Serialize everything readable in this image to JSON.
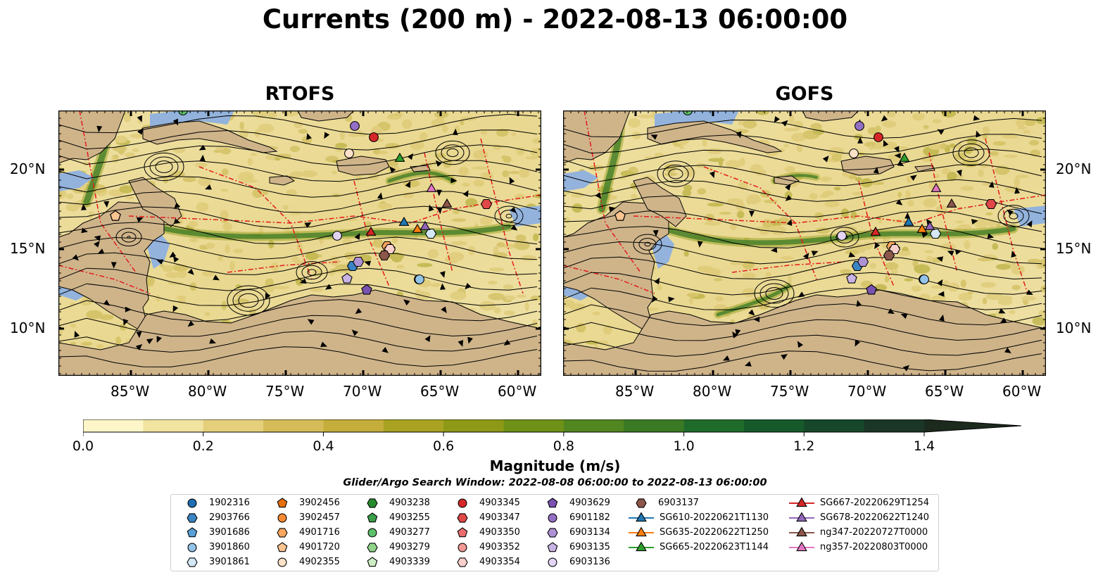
{
  "title": "Currents (200 m) - 2022-08-13 06:00:00",
  "panels": [
    {
      "title": "RTOFS"
    },
    {
      "title": "GOFS"
    }
  ],
  "axes": {
    "lon_ticks": [
      "85°W",
      "80°W",
      "75°W",
      "70°W",
      "65°W",
      "60°W"
    ],
    "lat_ticks": [
      "20°N",
      "15°N",
      "10°N"
    ]
  },
  "colorbar": {
    "label": "Magnitude (m/s)",
    "tick_labels": [
      "0.0",
      "0.2",
      "0.4",
      "0.6",
      "0.8",
      "1.0",
      "1.2",
      "1.4"
    ],
    "range": [
      0,
      1.5
    ],
    "colors": [
      "#fdf6c8",
      "#f1e3a0",
      "#e4cf7b",
      "#d5bc58",
      "#c4ad3a",
      "#a9a223",
      "#8e9a17",
      "#6f9118",
      "#528620",
      "#3a7a24",
      "#1f6b2b",
      "#165a2c",
      "#17472a",
      "#1b3626",
      "#1c2a1e"
    ]
  },
  "search_window": "Glider/Argo Search Window: 2022-08-08 06:00:00 to 2022-08-13 06:00:00",
  "legend": [
    {
      "label": "1902316",
      "marker": "circle",
      "color": "#1f6eb4"
    },
    {
      "label": "2903766",
      "marker": "hexagon",
      "color": "#3a84c4"
    },
    {
      "label": "3901686",
      "marker": "pentagon",
      "color": "#5aa0d8"
    },
    {
      "label": "3901860",
      "marker": "circle",
      "color": "#93c4e8"
    },
    {
      "label": "3901861",
      "marker": "hexagon",
      "color": "#d4e8f6"
    },
    {
      "label": "3902456",
      "marker": "pentagon",
      "color": "#e66f0d"
    },
    {
      "label": "3902457",
      "marker": "circle",
      "color": "#f58a32"
    },
    {
      "label": "4901716",
      "marker": "hexagon",
      "color": "#f9a660"
    },
    {
      "label": "4901720",
      "marker": "pentagon",
      "color": "#fbc490"
    },
    {
      "label": "4902355",
      "marker": "circle",
      "color": "#fde2c8"
    },
    {
      "label": "4903238",
      "marker": "hexagon",
      "color": "#268a2e"
    },
    {
      "label": "4903255",
      "marker": "pentagon",
      "color": "#3aa04a"
    },
    {
      "label": "4903277",
      "marker": "circle",
      "color": "#5ec06a"
    },
    {
      "label": "4903279",
      "marker": "hexagon",
      "color": "#8fd48a"
    },
    {
      "label": "4903339",
      "marker": "pentagon",
      "color": "#cdeec4"
    },
    {
      "label": "4903345",
      "marker": "circle",
      "color": "#d62728"
    },
    {
      "label": "4903347",
      "marker": "hexagon",
      "color": "#e04848"
    },
    {
      "label": "4903350",
      "marker": "pentagon",
      "color": "#ea6c6c"
    },
    {
      "label": "4903352",
      "marker": "circle",
      "color": "#f39a96"
    },
    {
      "label": "4903354",
      "marker": "hexagon",
      "color": "#fad0cc"
    },
    {
      "label": "4903629",
      "marker": "pentagon",
      "color": "#7a52b0"
    },
    {
      "label": "6901182",
      "marker": "circle",
      "color": "#9370c4"
    },
    {
      "label": "6903134",
      "marker": "hexagon",
      "color": "#ad92d4"
    },
    {
      "label": "6903135",
      "marker": "pentagon",
      "color": "#c8b4e4"
    },
    {
      "label": "6903136",
      "marker": "circle",
      "color": "#e2d4f2"
    },
    {
      "label": "6903137",
      "marker": "hexagon",
      "color": "#8c564b"
    },
    {
      "label": "SG610-20220621T1130",
      "marker": "triangle-line",
      "color": "#1f77b4"
    },
    {
      "label": "SG635-20220622T1250",
      "marker": "triangle-line",
      "color": "#ff7f0e"
    },
    {
      "label": "SG665-20220623T1144",
      "marker": "triangle-line",
      "color": "#2ca02c"
    },
    {
      "label": "SG667-20220629T1254",
      "marker": "triangle-line",
      "color": "#d62728"
    },
    {
      "label": "SG678-20220622T1240",
      "marker": "triangle-line",
      "color": "#9467bd"
    },
    {
      "label": "ng347-20220727T0000",
      "marker": "triangle-line",
      "color": "#8c564b"
    },
    {
      "label": "ng357-20220803T0000",
      "marker": "triangle-line",
      "color": "#e377c2"
    }
  ]
}
